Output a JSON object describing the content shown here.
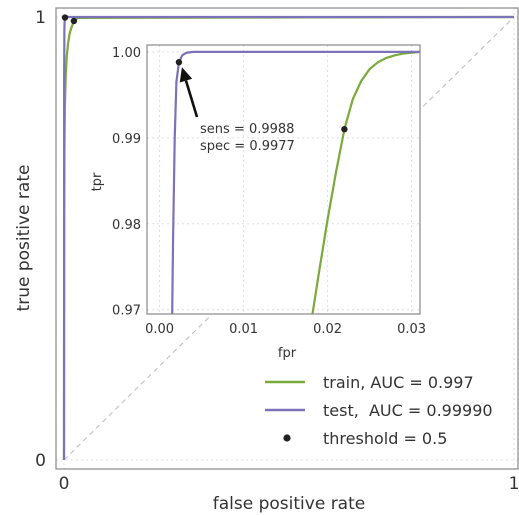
{
  "chart_data": {
    "type": "line",
    "main": {
      "xlabel": "false positive rate",
      "ylabel": "true positive rate",
      "xlim": [
        0,
        1
      ],
      "ylim": [
        0,
        1
      ],
      "x_ticks": [
        "0",
        "1"
      ],
      "y_ticks": [
        "0",
        "1"
      ],
      "grid": true,
      "diagonal_reference": true,
      "series": [
        {
          "name": "train, AUC = 0.997",
          "color": "#7aaa3a",
          "x": [
            0,
            0.0005,
            0.001,
            0.002,
            0.004,
            0.006,
            0.009,
            0.012,
            0.016,
            0.02,
            0.025,
            0.03,
            1
          ],
          "y": [
            0,
            0.55,
            0.7,
            0.8,
            0.87,
            0.91,
            0.94,
            0.96,
            0.975,
            0.985,
            0.992,
            0.998,
            1
          ]
        },
        {
          "name": "test,  AUC = 0.99990",
          "color": "#7b72b8",
          "x": [
            0,
            0.0003,
            0.0008,
            0.0015,
            0.0023,
            0.003,
            0.005,
            1
          ],
          "y": [
            0,
            0.85,
            0.97,
            0.995,
            0.9988,
            0.9995,
            1,
            1
          ]
        }
      ],
      "threshold_points": [
        {
          "x": 0.0023,
          "y": 0.9988
        },
        {
          "x": 0.022,
          "y": 0.991
        }
      ]
    },
    "inset": {
      "xlabel": "fpr",
      "ylabel": "tpr",
      "xlim": [
        -0.0015,
        0.031
      ],
      "ylim": [
        0.9695,
        1.0008
      ],
      "x_ticks": [
        0.0,
        0.01,
        0.02,
        0.03
      ],
      "x_tick_labels": [
        "0.00",
        "0.01",
        "0.02",
        "0.03"
      ],
      "y_ticks": [
        0.97,
        0.98,
        0.99,
        1.0
      ],
      "y_tick_labels": [
        "0.97",
        "0.98",
        "0.99",
        "1.00"
      ],
      "grid": true,
      "series": [
        {
          "name": "train",
          "color": "#7aaa3a",
          "x": [
            0.0182,
            0.019,
            0.02,
            0.021,
            0.022,
            0.023,
            0.024,
            0.025,
            0.026,
            0.027,
            0.028,
            0.029,
            0.03,
            0.031
          ],
          "y": [
            0.9695,
            0.9745,
            0.9805,
            0.986,
            0.991,
            0.9945,
            0.9966,
            0.998,
            0.9988,
            0.9993,
            0.9996,
            0.9998,
            0.9999,
            1.0
          ]
        },
        {
          "name": "test",
          "color": "#7b72b8",
          "x": [
            0.0015,
            0.0016,
            0.0018,
            0.002,
            0.0023,
            0.0027,
            0.0032,
            0.004,
            0.005,
            0.031
          ],
          "y": [
            0.9695,
            0.978,
            0.99,
            0.9965,
            0.9988,
            0.9996,
            0.9999,
            1.0,
            1.0,
            1.0
          ]
        }
      ],
      "threshold_points": [
        {
          "x": 0.0023,
          "y": 0.9988
        },
        {
          "x": 0.022,
          "y": 0.991
        }
      ],
      "annotation": {
        "lines": [
          "sens = 0.9988",
          "spec = 0.9977"
        ],
        "arrow_target": {
          "x": 0.0023,
          "y": 0.9988
        }
      }
    },
    "legend": {
      "placement": "bottom-right",
      "entries": [
        {
          "label": "train, AUC = 0.997",
          "color": "#7aaa3a",
          "marker": "line"
        },
        {
          "label": "test,  AUC = 0.99990",
          "color": "#7b72b8",
          "marker": "line"
        },
        {
          "label": "threshold = 0.5",
          "color": "#222222",
          "marker": "dot"
        }
      ]
    }
  }
}
